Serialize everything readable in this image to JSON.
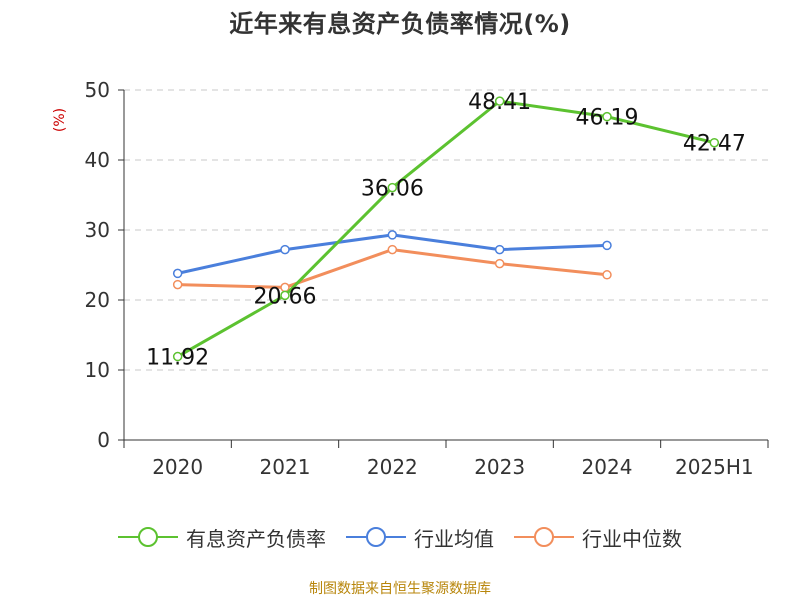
{
  "title": "近年来有息资产负债率情况(%)",
  "source": "制图数据来自恒生聚源数据库",
  "chart_data": {
    "type": "line",
    "title": "近年来有息资产负债率情况(%)",
    "ylabel": "(%)",
    "xlabel": "",
    "categories": [
      "2020",
      "2021",
      "2022",
      "2023",
      "2024",
      "2025H1"
    ],
    "ylim": [
      0,
      50
    ],
    "yticks": [
      0,
      10,
      20,
      30,
      40,
      50
    ],
    "grid": true,
    "legend_position": "bottom",
    "series": [
      {
        "name": "有息资产负债率",
        "color": "#5cc230",
        "values": [
          11.92,
          20.66,
          36.06,
          48.41,
          46.19,
          42.47
        ],
        "labels": [
          "11.92",
          "20.66",
          "36.06",
          "48.41",
          "46.19",
          "42.47"
        ]
      },
      {
        "name": "行业均值",
        "color": "#4a7fdc",
        "values": [
          23.8,
          27.2,
          29.3,
          27.2,
          27.8,
          null
        ]
      },
      {
        "name": "行业中位数",
        "color": "#f28e5c",
        "values": [
          22.2,
          21.8,
          27.2,
          25.2,
          23.6,
          null
        ]
      }
    ]
  }
}
